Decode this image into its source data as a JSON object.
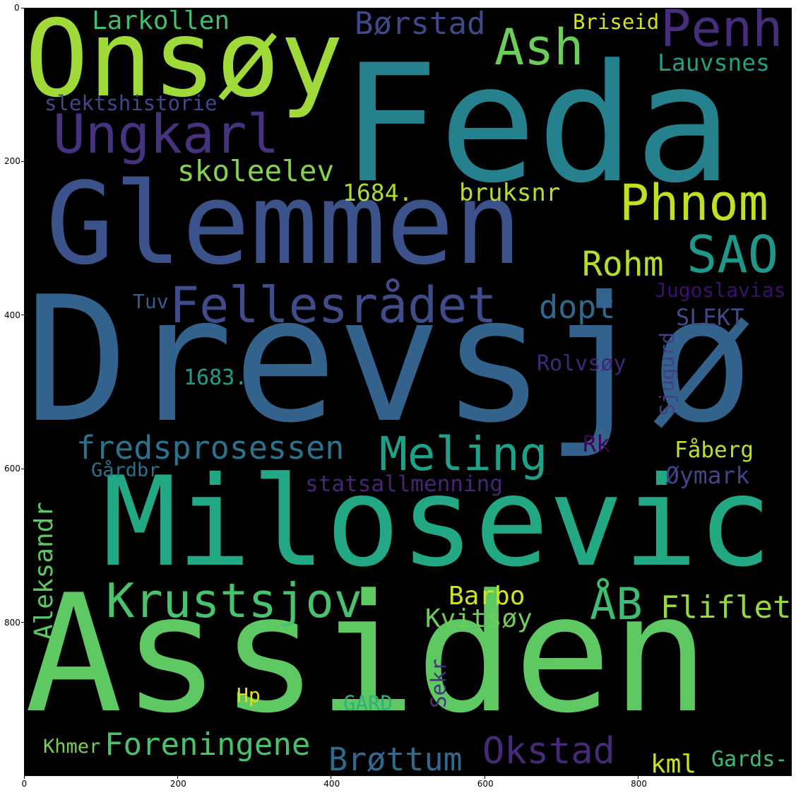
{
  "axes": {
    "x_ticks": [
      "0",
      "200",
      "400",
      "600",
      "800"
    ],
    "y_ticks": [
      "0",
      "200",
      "400",
      "600",
      "800"
    ]
  },
  "words": [
    {
      "text": "Onsøy",
      "color": "#a0da39"
    },
    {
      "text": "Feda",
      "color": "#26818e"
    },
    {
      "text": "Glemmen",
      "color": "#3b528b"
    },
    {
      "text": "Drevsjø",
      "color": "#33638d"
    },
    {
      "text": "Milosevic",
      "color": "#22a884"
    },
    {
      "text": "Assiden",
      "color": "#5ec962"
    },
    {
      "text": "Penh",
      "color": "#472d7b"
    },
    {
      "text": "Ash",
      "color": "#6ccd5a"
    },
    {
      "text": "Larkollen",
      "color": "#42be71"
    },
    {
      "text": "Børstad",
      "color": "#3e4989"
    },
    {
      "text": "Briseid",
      "color": "#d8e219"
    },
    {
      "text": "Lauvsnes",
      "color": "#1fa187"
    },
    {
      "text": "slektshistorie",
      "color": "#3e4989"
    },
    {
      "text": "Ungkarl",
      "color": "#46327e"
    },
    {
      "text": "skoleelev",
      "color": "#84d44b"
    },
    {
      "text": "Phnom",
      "color": "#c2df23"
    },
    {
      "text": "1684.",
      "color": "#addc30"
    },
    {
      "text": "bruksnr",
      "color": "#b5de2b"
    },
    {
      "text": "SAO",
      "color": "#1f978b"
    },
    {
      "text": "Rohm",
      "color": "#b5de2b"
    },
    {
      "text": "Fellesrådet",
      "color": "#3e4c8a"
    },
    {
      "text": "dopt",
      "color": "#31688e"
    },
    {
      "text": "Jugoslavias",
      "color": "#3b0f70"
    },
    {
      "text": "Tuv",
      "color": "#365c8d"
    },
    {
      "text": "SLEKT",
      "color": "#3e4c8a"
    },
    {
      "text": "Rolvsøy",
      "color": "#3f2878"
    },
    {
      "text": "1683.",
      "color": "#1f9e89"
    },
    {
      "text": "Sjugurd",
      "color": "#433e85"
    },
    {
      "text": "fredsprosessen",
      "color": "#2c728e"
    },
    {
      "text": "Meling",
      "color": "#1fa088"
    },
    {
      "text": "Rk",
      "color": "#440154"
    },
    {
      "text": "Fåberg",
      "color": "#c0df25"
    },
    {
      "text": "Gårdbr",
      "color": "#2d708e"
    },
    {
      "text": "statsallmenning",
      "color": "#482475"
    },
    {
      "text": "Øymark",
      "color": "#414487"
    },
    {
      "text": "Aleksandr",
      "color": "#5ec962"
    },
    {
      "text": "Krustsjov",
      "color": "#4ac16d"
    },
    {
      "text": "ÅB",
      "color": "#3dbc74"
    },
    {
      "text": "Barbo",
      "color": "#d2e21b"
    },
    {
      "text": "Fliflet",
      "color": "#95d840"
    },
    {
      "text": "Kvitsøy",
      "color": "#6ece58"
    },
    {
      "text": "Sekr",
      "color": "#46327e"
    },
    {
      "text": "Hp",
      "color": "#dde318"
    },
    {
      "text": "GARD",
      "color": "#2db27d"
    },
    {
      "text": "Khmer",
      "color": "#7ad151"
    },
    {
      "text": "Foreningene",
      "color": "#4ac16d"
    },
    {
      "text": "Brøttum",
      "color": "#306a8e"
    },
    {
      "text": "Okstad",
      "color": "#482878"
    },
    {
      "text": "kml",
      "color": "#cae11f"
    },
    {
      "text": "Gards-",
      "color": "#3dbc74"
    }
  ]
}
